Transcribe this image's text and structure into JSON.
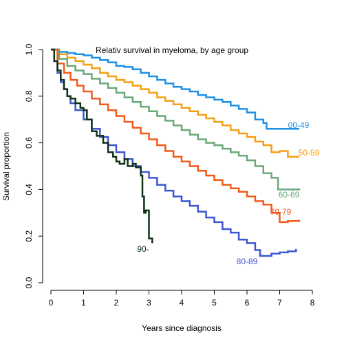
{
  "chart_data": {
    "type": "line",
    "step": true,
    "title": "Relativ survival in myeloma, by age group",
    "xlabel": "Years since diagnosis",
    "ylabel": "Survival proportion",
    "xlim": [
      0,
      8
    ],
    "ylim": [
      0,
      1
    ],
    "xticks": [
      "0",
      "1",
      "2",
      "3",
      "4",
      "5",
      "6",
      "7",
      "8"
    ],
    "yticks": [
      "0.0",
      "0.2",
      "0.4",
      "0.6",
      "0.8",
      "1.0"
    ],
    "grid": false,
    "legend": "labels at line ends",
    "series": [
      {
        "name": "00-49",
        "color": "#1e90e6",
        "points": [
          [
            0,
            1.0
          ],
          [
            0.25,
            0.99
          ],
          [
            0.5,
            0.985
          ],
          [
            0.75,
            0.98
          ],
          [
            1.0,
            0.975
          ],
          [
            1.25,
            0.965
          ],
          [
            1.5,
            0.955
          ],
          [
            1.75,
            0.945
          ],
          [
            2.0,
            0.93
          ],
          [
            2.25,
            0.925
          ],
          [
            2.5,
            0.915
          ],
          [
            2.75,
            0.9
          ],
          [
            3.0,
            0.885
          ],
          [
            3.25,
            0.87
          ],
          [
            3.5,
            0.855
          ],
          [
            3.75,
            0.84
          ],
          [
            4.0,
            0.83
          ],
          [
            4.25,
            0.82
          ],
          [
            4.5,
            0.805
          ],
          [
            4.75,
            0.795
          ],
          [
            5.0,
            0.785
          ],
          [
            5.25,
            0.775
          ],
          [
            5.5,
            0.76
          ],
          [
            5.75,
            0.745
          ],
          [
            6.0,
            0.73
          ],
          [
            6.25,
            0.7
          ],
          [
            6.5,
            0.685
          ],
          [
            6.6,
            0.66
          ],
          [
            7.0,
            0.66
          ],
          [
            7.6,
            0.66
          ]
        ]
      },
      {
        "name": "50-59",
        "color": "#f5a012",
        "points": [
          [
            0,
            1.0
          ],
          [
            0.25,
            0.98
          ],
          [
            0.5,
            0.965
          ],
          [
            0.75,
            0.95
          ],
          [
            1.0,
            0.935
          ],
          [
            1.25,
            0.92
          ],
          [
            1.5,
            0.9
          ],
          [
            1.75,
            0.885
          ],
          [
            2.0,
            0.87
          ],
          [
            2.25,
            0.86
          ],
          [
            2.5,
            0.845
          ],
          [
            2.75,
            0.83
          ],
          [
            3.0,
            0.815
          ],
          [
            3.25,
            0.795
          ],
          [
            3.5,
            0.78
          ],
          [
            3.75,
            0.765
          ],
          [
            4.0,
            0.75
          ],
          [
            4.25,
            0.735
          ],
          [
            4.5,
            0.72
          ],
          [
            4.75,
            0.705
          ],
          [
            5.0,
            0.69
          ],
          [
            5.25,
            0.675
          ],
          [
            5.5,
            0.655
          ],
          [
            5.75,
            0.64
          ],
          [
            6.0,
            0.625
          ],
          [
            6.25,
            0.605
          ],
          [
            6.5,
            0.59
          ],
          [
            6.75,
            0.56
          ],
          [
            7.0,
            0.565
          ],
          [
            7.25,
            0.54
          ],
          [
            7.6,
            0.54
          ]
        ]
      },
      {
        "name": "60-69",
        "color": "#6aa878",
        "points": [
          [
            0,
            1.0
          ],
          [
            0.25,
            0.96
          ],
          [
            0.5,
            0.93
          ],
          [
            0.75,
            0.91
          ],
          [
            1.0,
            0.895
          ],
          [
            1.25,
            0.875
          ],
          [
            1.5,
            0.855
          ],
          [
            1.75,
            0.835
          ],
          [
            2.0,
            0.815
          ],
          [
            2.25,
            0.795
          ],
          [
            2.5,
            0.775
          ],
          [
            2.75,
            0.755
          ],
          [
            3.0,
            0.735
          ],
          [
            3.25,
            0.715
          ],
          [
            3.5,
            0.695
          ],
          [
            3.75,
            0.675
          ],
          [
            4.0,
            0.655
          ],
          [
            4.25,
            0.635
          ],
          [
            4.5,
            0.615
          ],
          [
            4.75,
            0.6
          ],
          [
            5.0,
            0.59
          ],
          [
            5.25,
            0.575
          ],
          [
            5.5,
            0.56
          ],
          [
            5.75,
            0.545
          ],
          [
            6.0,
            0.525
          ],
          [
            6.25,
            0.5
          ],
          [
            6.5,
            0.47
          ],
          [
            6.75,
            0.45
          ],
          [
            6.95,
            0.4
          ],
          [
            7.2,
            0.4
          ],
          [
            7.6,
            0.405
          ]
        ]
      },
      {
        "name": "70-79",
        "color": "#f25a1a",
        "points": [
          [
            0,
            1.0
          ],
          [
            0.2,
            0.94
          ],
          [
            0.4,
            0.9
          ],
          [
            0.6,
            0.87
          ],
          [
            0.8,
            0.845
          ],
          [
            1.0,
            0.82
          ],
          [
            1.25,
            0.79
          ],
          [
            1.5,
            0.765
          ],
          [
            1.75,
            0.74
          ],
          [
            2.0,
            0.715
          ],
          [
            2.25,
            0.69
          ],
          [
            2.5,
            0.665
          ],
          [
            2.75,
            0.64
          ],
          [
            3.0,
            0.615
          ],
          [
            3.25,
            0.59
          ],
          [
            3.5,
            0.565
          ],
          [
            3.75,
            0.54
          ],
          [
            4.0,
            0.52
          ],
          [
            4.25,
            0.5
          ],
          [
            4.5,
            0.48
          ],
          [
            4.75,
            0.46
          ],
          [
            5.0,
            0.44
          ],
          [
            5.25,
            0.42
          ],
          [
            5.5,
            0.405
          ],
          [
            5.75,
            0.39
          ],
          [
            6.0,
            0.37
          ],
          [
            6.25,
            0.35
          ],
          [
            6.5,
            0.335
          ],
          [
            6.75,
            0.3
          ],
          [
            7.0,
            0.26
          ],
          [
            7.25,
            0.265
          ],
          [
            7.6,
            0.27
          ]
        ]
      },
      {
        "name": "80-89",
        "color": "#3c56d2",
        "points": [
          [
            0,
            1.0
          ],
          [
            0.1,
            0.95
          ],
          [
            0.2,
            0.9
          ],
          [
            0.3,
            0.86
          ],
          [
            0.4,
            0.83
          ],
          [
            0.5,
            0.8
          ],
          [
            0.6,
            0.77
          ],
          [
            0.75,
            0.74
          ],
          [
            1.0,
            0.7
          ],
          [
            1.25,
            0.66
          ],
          [
            1.5,
            0.625
          ],
          [
            1.75,
            0.59
          ],
          [
            2.0,
            0.56
          ],
          [
            2.25,
            0.53
          ],
          [
            2.5,
            0.5
          ],
          [
            2.75,
            0.475
          ],
          [
            3.0,
            0.45
          ],
          [
            3.25,
            0.42
          ],
          [
            3.5,
            0.395
          ],
          [
            3.75,
            0.37
          ],
          [
            4.0,
            0.35
          ],
          [
            4.25,
            0.33
          ],
          [
            4.5,
            0.305
          ],
          [
            4.75,
            0.28
          ],
          [
            5.0,
            0.26
          ],
          [
            5.25,
            0.23
          ],
          [
            5.5,
            0.215
          ],
          [
            5.75,
            0.185
          ],
          [
            6.0,
            0.17
          ],
          [
            6.25,
            0.14
          ],
          [
            6.4,
            0.115
          ],
          [
            6.75,
            0.125
          ],
          [
            7.0,
            0.13
          ],
          [
            7.25,
            0.135
          ],
          [
            7.5,
            0.145
          ]
        ]
      },
      {
        "name": "90-",
        "color": "#0f3214",
        "points": [
          [
            0,
            1.0
          ],
          [
            0.1,
            0.95
          ],
          [
            0.2,
            0.91
          ],
          [
            0.3,
            0.87
          ],
          [
            0.4,
            0.83
          ],
          [
            0.5,
            0.8
          ],
          [
            0.6,
            0.79
          ],
          [
            0.75,
            0.77
          ],
          [
            0.9,
            0.75
          ],
          [
            1.0,
            0.74
          ],
          [
            1.1,
            0.7
          ],
          [
            1.25,
            0.65
          ],
          [
            1.4,
            0.63
          ],
          [
            1.6,
            0.6
          ],
          [
            1.75,
            0.56
          ],
          [
            1.9,
            0.54
          ],
          [
            2.0,
            0.52
          ],
          [
            2.1,
            0.51
          ],
          [
            2.25,
            0.53
          ],
          [
            2.35,
            0.5
          ],
          [
            2.5,
            0.51
          ],
          [
            2.6,
            0.495
          ],
          [
            2.75,
            0.46
          ],
          [
            2.8,
            0.37
          ],
          [
            2.85,
            0.3
          ],
          [
            2.9,
            0.31
          ],
          [
            3.0,
            0.19
          ],
          [
            3.1,
            0.17
          ]
        ]
      }
    ]
  }
}
